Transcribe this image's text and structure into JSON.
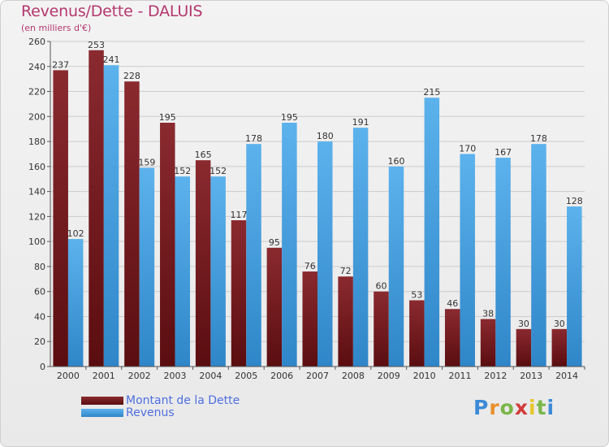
{
  "title": "Revenus/Dette - DALUIS",
  "unit": "(en milliers d'€)",
  "logo": {
    "letters": [
      "P",
      "r",
      "o",
      "x",
      "i",
      "t",
      "i"
    ],
    "colors": [
      "#3d8ad6",
      "#e7902c",
      "#7ab648",
      "#d33b3b",
      "#e7c62c",
      "#7ab648",
      "#3d8ad6"
    ]
  },
  "legend": {
    "debt_label": "Montant de la Dette",
    "revenue_label": "Revenus"
  },
  "colors": {
    "debt": "#7a1f24",
    "revenue": "#4aa6e6",
    "grid": "#cccccc"
  },
  "chart_data": {
    "type": "bar",
    "categories": [
      "2000",
      "2001",
      "2002",
      "2003",
      "2004",
      "2005",
      "2006",
      "2007",
      "2008",
      "2009",
      "2010",
      "2011",
      "2012",
      "2013",
      "2014"
    ],
    "series": [
      {
        "name": "Montant de la Dette",
        "values": [
          237,
          253,
          228,
          195,
          165,
          117,
          95,
          76,
          72,
          60,
          53,
          46,
          38,
          30,
          30
        ]
      },
      {
        "name": "Revenus",
        "values": [
          102,
          241,
          159,
          152,
          152,
          178,
          195,
          180,
          191,
          160,
          215,
          170,
          167,
          178,
          128
        ]
      }
    ],
    "ylim": [
      0,
      260
    ],
    "yticks": [
      0,
      20,
      40,
      60,
      80,
      100,
      120,
      140,
      160,
      180,
      200,
      220,
      240,
      260
    ],
    "grid": true
  }
}
